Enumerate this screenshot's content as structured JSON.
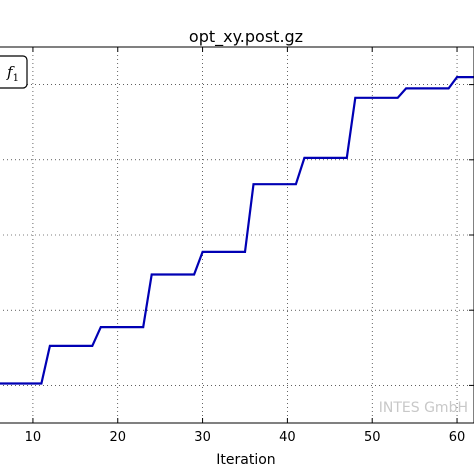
{
  "chart_data": {
    "type": "line",
    "title": "opt_xy.post.gz",
    "xlabel": "Iteration",
    "ylabel": "",
    "xlim": [
      6,
      62
    ],
    "ylim": [
      0,
      10
    ],
    "x_ticks": [
      10,
      20,
      30,
      40,
      50,
      60
    ],
    "y_ticks": [
      1,
      3,
      5,
      7,
      9
    ],
    "grid": true,
    "legend": {
      "entries": [
        "f1"
      ],
      "position": "top-left"
    },
    "series": [
      {
        "name": "f1",
        "color": "#0000b4",
        "x": [
          6,
          11,
          12,
          17,
          18,
          23,
          24,
          29,
          30,
          35,
          36,
          41,
          42,
          47,
          48,
          53,
          54,
          59,
          60,
          62
        ],
        "y": [
          1.05,
          1.05,
          2.05,
          2.05,
          2.55,
          2.55,
          3.95,
          3.95,
          4.55,
          4.55,
          6.35,
          6.35,
          7.05,
          7.05,
          8.65,
          8.65,
          8.9,
          8.9,
          9.2,
          9.2
        ]
      }
    ],
    "watermark": "INTES GmbH"
  }
}
